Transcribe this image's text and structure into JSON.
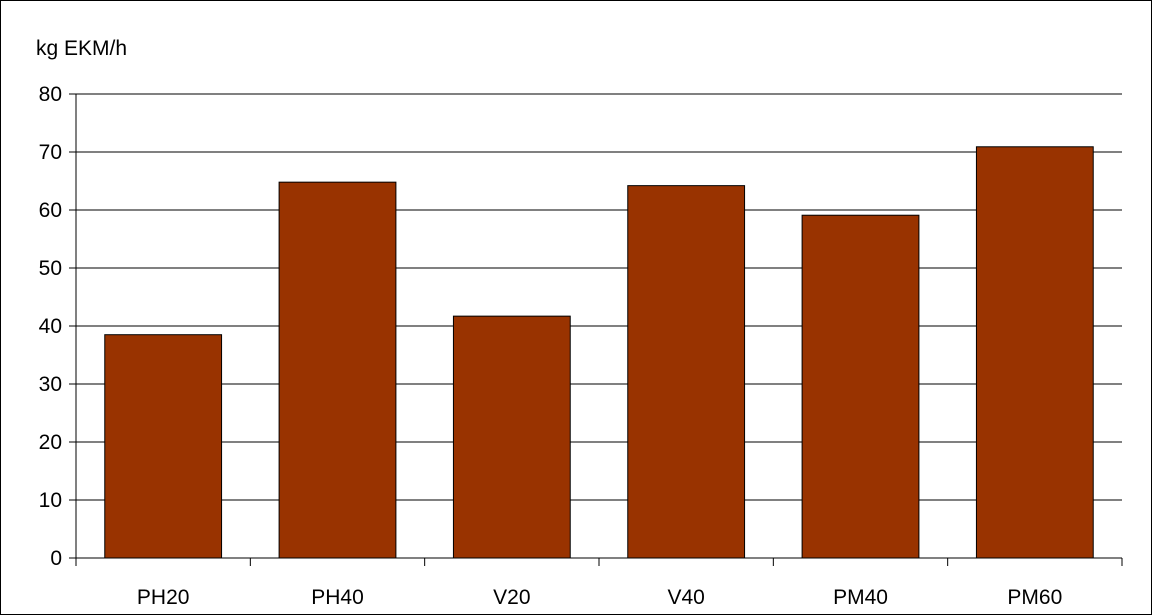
{
  "chart_data": {
    "type": "bar",
    "title": "",
    "xlabel": "",
    "ylabel": "kg EKM/h",
    "categories": [
      "PH20",
      "PH40",
      "V20",
      "V40",
      "PM40",
      "PM60"
    ],
    "values": [
      38.5,
      64.8,
      41.7,
      64.2,
      59.1,
      70.9
    ],
    "ylim": [
      0,
      80
    ],
    "yticks": [
      0,
      10,
      20,
      30,
      40,
      50,
      60,
      70,
      80
    ],
    "grid": true,
    "legend": "none",
    "bar_color": "#993300",
    "bar_edge_color": "#000000",
    "grid_color": "#000000"
  }
}
